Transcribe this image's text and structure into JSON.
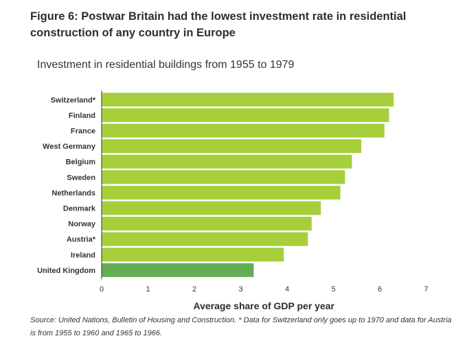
{
  "figure": {
    "title": "Figure 6: Postwar Britain had the lowest investment rate in residential construction of any country in Europe",
    "source": "Source: United Nations, Bulletin of Housing and Construction. * Data for Switzerland only goes up to 1970 and data for Austria is from 1955 to 1960 and 1965 to 1966."
  },
  "chart_data": {
    "type": "bar",
    "orientation": "horizontal",
    "title": "Investment in residential buildings from 1955 to 1979",
    "xlabel": "Average share of GDP per year",
    "ylabel": "",
    "categories": [
      "Switzerland*",
      "Finland",
      "France",
      "West Germany",
      "Belgium",
      "Sweden",
      "Netherlands",
      "Denmark",
      "Norway",
      "Austria*",
      "Ireland",
      "United Kingdom"
    ],
    "values": [
      6.3,
      6.2,
      6.1,
      5.6,
      5.4,
      5.25,
      5.15,
      4.73,
      4.53,
      4.45,
      3.93,
      3.28
    ],
    "xlim": [
      0,
      7
    ],
    "xticks": [
      "0",
      "1",
      "2",
      "3",
      "4",
      "5",
      "6",
      "7"
    ],
    "grid": false,
    "colors": {
      "default": "#a6cf3c",
      "highlight": "#65ac56",
      "axis": "#333333"
    },
    "highlight_category": "United Kingdom"
  }
}
